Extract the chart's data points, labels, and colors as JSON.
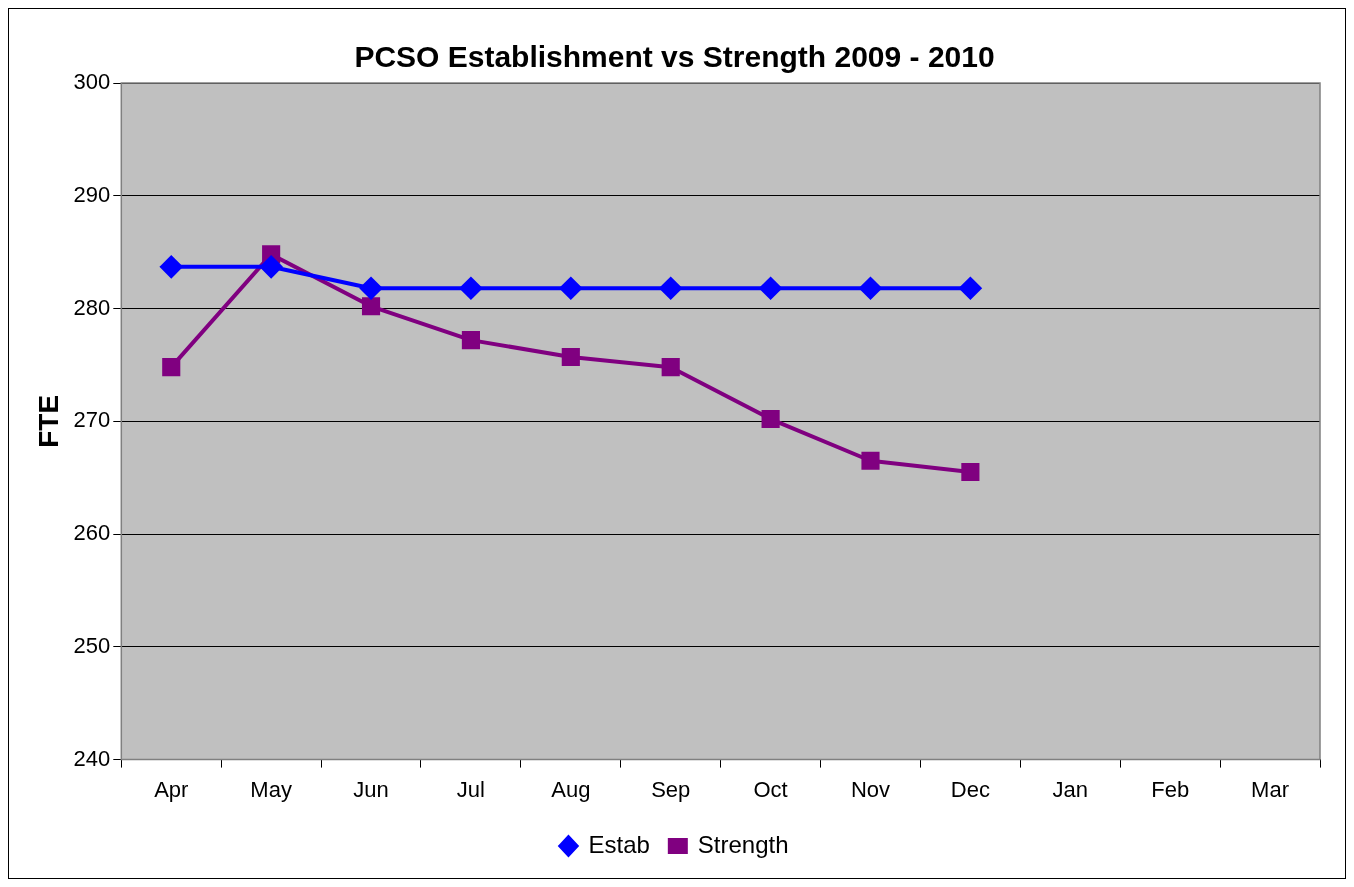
{
  "chart_data": {
    "type": "line",
    "title": "PCSO Establishment vs Strength 2009 - 2010",
    "ylabel": "FTE",
    "categories": [
      "Apr",
      "May",
      "Jun",
      "Jul",
      "Aug",
      "Sep",
      "Oct",
      "Nov",
      "Dec",
      "Jan",
      "Feb",
      "Mar"
    ],
    "series": [
      {
        "name": "Estab",
        "color": "#0000ff",
        "marker": "diamond",
        "values": [
          283.7,
          283.7,
          281.8,
          281.8,
          281.8,
          281.8,
          281.8,
          281.8,
          281.8,
          null,
          null,
          null
        ]
      },
      {
        "name": "Strength",
        "color": "#800080",
        "marker": "square",
        "values": [
          274.8,
          284.8,
          280.2,
          277.2,
          275.7,
          274.8,
          270.2,
          266.5,
          265.5,
          null,
          null,
          null
        ]
      }
    ],
    "ylim": [
      240,
      300
    ],
    "yticks": [
      240,
      250,
      260,
      270,
      280,
      290,
      300
    ],
    "grid": "y",
    "legend": "bottom",
    "line_style": "solid"
  }
}
